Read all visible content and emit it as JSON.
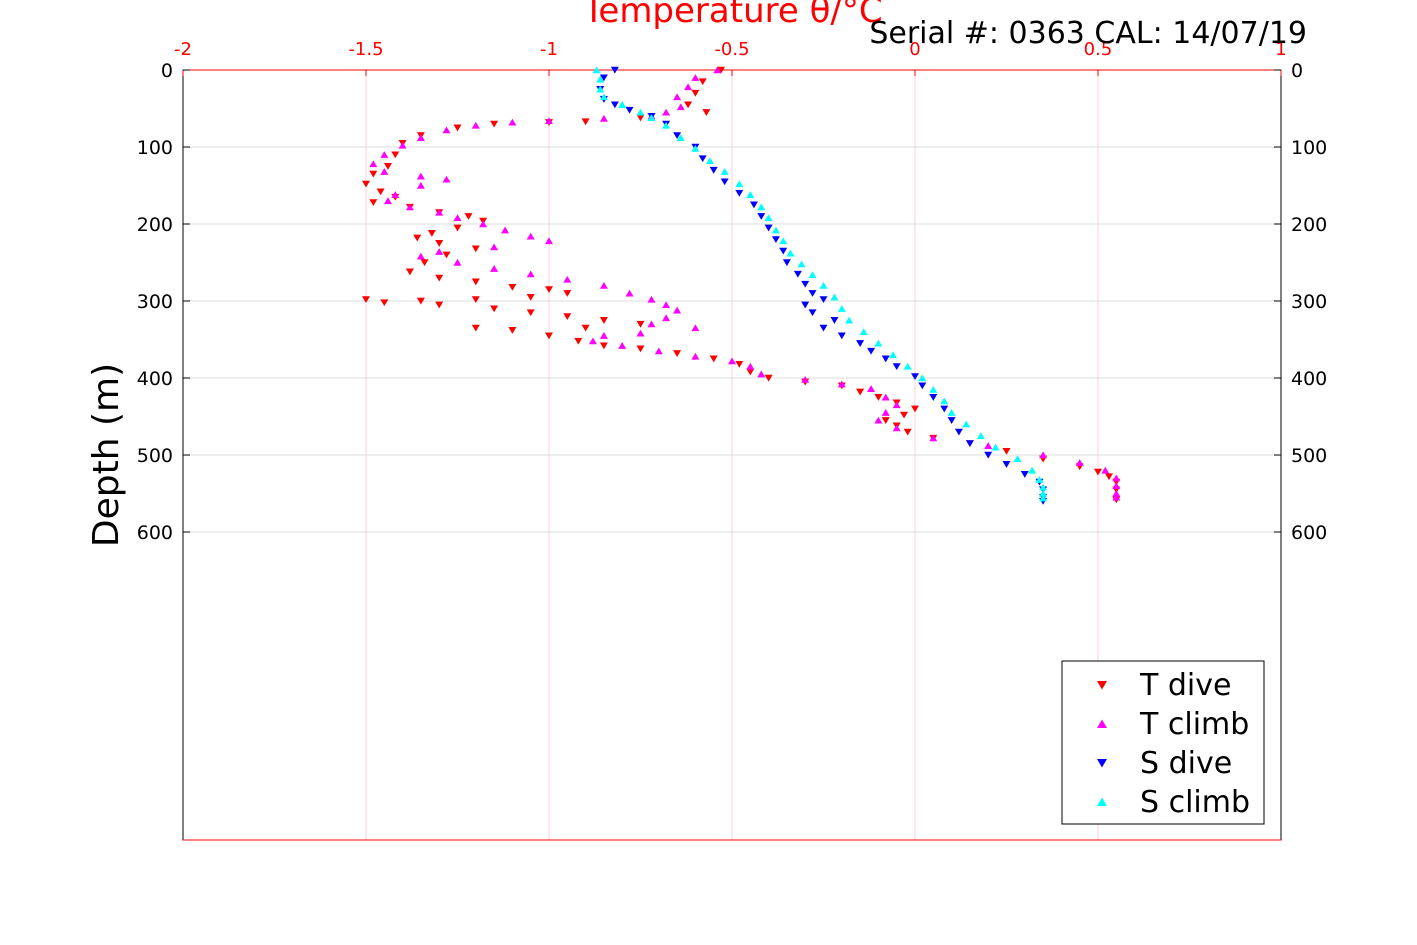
{
  "serial_text": "Serial #: 0363  CAL: 14/07/19",
  "chart_data": {
    "type": "scatter",
    "title": "Temperature θ/°C",
    "xlabel": "Temperature θ/°C",
    "ylabel": "Depth (m)",
    "xlim": [
      -2,
      1
    ],
    "ylim": [
      0,
      1000
    ],
    "y_reversed": true,
    "x_ticks": [
      "-2",
      "-1.5",
      "-1",
      "-0.5",
      "0",
      "0.5",
      "1"
    ],
    "x_tick_values": [
      -2,
      -1.5,
      -1,
      -0.5,
      0,
      0.5,
      1
    ],
    "y_ticks": [
      "0",
      "100",
      "200",
      "300",
      "400",
      "500",
      "600"
    ],
    "y_tick_values": [
      0,
      100,
      200,
      300,
      400,
      500,
      600
    ],
    "grid": true,
    "legend_position": "bottom-right",
    "series": [
      {
        "name": "T dive",
        "color": "#ff0000",
        "marker": "triangle-down",
        "points": [
          [
            -0.53,
            0
          ],
          [
            -0.58,
            15
          ],
          [
            -0.6,
            30
          ],
          [
            -0.62,
            45
          ],
          [
            -0.57,
            55
          ],
          [
            -0.75,
            62
          ],
          [
            -0.9,
            67
          ],
          [
            -1.0,
            68
          ],
          [
            -1.15,
            70
          ],
          [
            -1.25,
            75
          ],
          [
            -1.35,
            85
          ],
          [
            -1.4,
            95
          ],
          [
            -1.42,
            110
          ],
          [
            -1.44,
            125
          ],
          [
            -1.48,
            135
          ],
          [
            -1.5,
            148
          ],
          [
            -1.46,
            158
          ],
          [
            -1.42,
            165
          ],
          [
            -1.48,
            172
          ],
          [
            -1.38,
            178
          ],
          [
            -1.3,
            185
          ],
          [
            -1.22,
            190
          ],
          [
            -1.18,
            196
          ],
          [
            -1.25,
            205
          ],
          [
            -1.32,
            212
          ],
          [
            -1.36,
            218
          ],
          [
            -1.3,
            225
          ],
          [
            -1.2,
            232
          ],
          [
            -1.28,
            240
          ],
          [
            -1.34,
            250
          ],
          [
            -1.38,
            262
          ],
          [
            -1.3,
            270
          ],
          [
            -1.2,
            275
          ],
          [
            -1.1,
            282
          ],
          [
            -1.0,
            285
          ],
          [
            -0.95,
            290
          ],
          [
            -1.05,
            295
          ],
          [
            -1.2,
            298
          ],
          [
            -1.35,
            300
          ],
          [
            -1.5,
            298
          ],
          [
            -1.45,
            302
          ],
          [
            -1.3,
            305
          ],
          [
            -1.15,
            310
          ],
          [
            -1.05,
            315
          ],
          [
            -0.95,
            320
          ],
          [
            -0.85,
            325
          ],
          [
            -0.75,
            330
          ],
          [
            -0.9,
            335
          ],
          [
            -1.1,
            338
          ],
          [
            -1.2,
            335
          ],
          [
            -1.0,
            345
          ],
          [
            -0.92,
            352
          ],
          [
            -0.85,
            358
          ],
          [
            -0.75,
            362
          ],
          [
            -0.65,
            368
          ],
          [
            -0.55,
            375
          ],
          [
            -0.48,
            382
          ],
          [
            -0.45,
            392
          ],
          [
            -0.4,
            400
          ],
          [
            -0.3,
            405
          ],
          [
            -0.2,
            410
          ],
          [
            -0.15,
            418
          ],
          [
            -0.1,
            425
          ],
          [
            -0.05,
            432
          ],
          [
            0.0,
            440
          ],
          [
            -0.03,
            448
          ],
          [
            -0.08,
            455
          ],
          [
            -0.05,
            462
          ],
          [
            -0.02,
            470
          ],
          [
            0.05,
            478
          ],
          [
            0.15,
            485
          ],
          [
            0.25,
            495
          ],
          [
            0.35,
            505
          ],
          [
            0.45,
            515
          ],
          [
            0.5,
            522
          ],
          [
            0.53,
            528
          ],
          [
            0.55,
            535
          ],
          [
            0.55,
            545
          ],
          [
            0.55,
            558
          ]
        ]
      },
      {
        "name": "T climb",
        "color": "#ff00ff",
        "marker": "triangle-up",
        "points": [
          [
            -0.54,
            0
          ],
          [
            -0.6,
            10
          ],
          [
            -0.62,
            22
          ],
          [
            -0.65,
            35
          ],
          [
            -0.64,
            48
          ],
          [
            -0.68,
            55
          ],
          [
            -0.72,
            60
          ],
          [
            -0.85,
            63
          ],
          [
            -1.0,
            66
          ],
          [
            -1.1,
            68
          ],
          [
            -1.2,
            72
          ],
          [
            -1.28,
            78
          ],
          [
            -1.35,
            88
          ],
          [
            -1.4,
            98
          ],
          [
            -1.45,
            110
          ],
          [
            -1.48,
            122
          ],
          [
            -1.45,
            132
          ],
          [
            -1.35,
            138
          ],
          [
            -1.28,
            142
          ],
          [
            -1.35,
            150
          ],
          [
            -1.42,
            162
          ],
          [
            -1.44,
            170
          ],
          [
            -1.38,
            178
          ],
          [
            -1.3,
            185
          ],
          [
            -1.25,
            192
          ],
          [
            -1.18,
            200
          ],
          [
            -1.12,
            208
          ],
          [
            -1.05,
            216
          ],
          [
            -1.0,
            222
          ],
          [
            -1.15,
            230
          ],
          [
            -1.3,
            236
          ],
          [
            -1.35,
            242
          ],
          [
            -1.25,
            250
          ],
          [
            -1.15,
            258
          ],
          [
            -1.05,
            265
          ],
          [
            -0.95,
            272
          ],
          [
            -0.85,
            280
          ],
          [
            -0.78,
            290
          ],
          [
            -0.72,
            298
          ],
          [
            -0.68,
            305
          ],
          [
            -0.65,
            312
          ],
          [
            -0.68,
            322
          ],
          [
            -0.72,
            330
          ],
          [
            -0.6,
            335
          ],
          [
            -0.75,
            342
          ],
          [
            -0.85,
            345
          ],
          [
            -0.88,
            352
          ],
          [
            -0.8,
            358
          ],
          [
            -0.7,
            365
          ],
          [
            -0.6,
            372
          ],
          [
            -0.5,
            378
          ],
          [
            -0.45,
            385
          ],
          [
            -0.42,
            395
          ],
          [
            -0.3,
            402
          ],
          [
            -0.2,
            408
          ],
          [
            -0.12,
            414
          ],
          [
            -0.08,
            425
          ],
          [
            -0.05,
            435
          ],
          [
            -0.08,
            445
          ],
          [
            -0.1,
            455
          ],
          [
            -0.05,
            465
          ],
          [
            0.05,
            478
          ],
          [
            0.2,
            488
          ],
          [
            0.35,
            500
          ],
          [
            0.45,
            510
          ],
          [
            0.52,
            520
          ],
          [
            0.55,
            530
          ],
          [
            0.55,
            540
          ],
          [
            0.55,
            550
          ],
          [
            0.55,
            555
          ]
        ]
      },
      {
        "name": "S dive",
        "color": "#0000ff",
        "marker": "triangle-down",
        "points": [
          [
            -0.82,
            0
          ],
          [
            -0.85,
            10
          ],
          [
            -0.86,
            25
          ],
          [
            -0.85,
            38
          ],
          [
            -0.82,
            45
          ],
          [
            -0.78,
            52
          ],
          [
            -0.72,
            60
          ],
          [
            -0.68,
            70
          ],
          [
            -0.65,
            85
          ],
          [
            -0.6,
            100
          ],
          [
            -0.58,
            115
          ],
          [
            -0.55,
            130
          ],
          [
            -0.52,
            145
          ],
          [
            -0.48,
            160
          ],
          [
            -0.44,
            175
          ],
          [
            -0.42,
            190
          ],
          [
            -0.4,
            205
          ],
          [
            -0.38,
            220
          ],
          [
            -0.36,
            235
          ],
          [
            -0.35,
            250
          ],
          [
            -0.32,
            265
          ],
          [
            -0.3,
            278
          ],
          [
            -0.28,
            290
          ],
          [
            -0.25,
            298
          ],
          [
            -0.3,
            305
          ],
          [
            -0.28,
            315
          ],
          [
            -0.22,
            325
          ],
          [
            -0.25,
            335
          ],
          [
            -0.2,
            345
          ],
          [
            -0.15,
            355
          ],
          [
            -0.12,
            365
          ],
          [
            -0.08,
            375
          ],
          [
            -0.05,
            385
          ],
          [
            0.0,
            398
          ],
          [
            0.02,
            410
          ],
          [
            0.05,
            425
          ],
          [
            0.08,
            440
          ],
          [
            0.1,
            455
          ],
          [
            0.12,
            470
          ],
          [
            0.15,
            485
          ],
          [
            0.2,
            500
          ],
          [
            0.25,
            512
          ],
          [
            0.3,
            525
          ],
          [
            0.34,
            535
          ],
          [
            0.35,
            545
          ],
          [
            0.35,
            555
          ],
          [
            0.35,
            560
          ]
        ]
      },
      {
        "name": "S climb",
        "color": "#00ffff",
        "marker": "triangle-up",
        "points": [
          [
            -0.87,
            0
          ],
          [
            -0.86,
            12
          ],
          [
            -0.86,
            25
          ],
          [
            -0.85,
            35
          ],
          [
            -0.8,
            45
          ],
          [
            -0.75,
            55
          ],
          [
            -0.72,
            62
          ],
          [
            -0.68,
            72
          ],
          [
            -0.64,
            88
          ],
          [
            -0.6,
            102
          ],
          [
            -0.56,
            118
          ],
          [
            -0.52,
            132
          ],
          [
            -0.48,
            148
          ],
          [
            -0.45,
            162
          ],
          [
            -0.42,
            178
          ],
          [
            -0.4,
            192
          ],
          [
            -0.38,
            208
          ],
          [
            -0.36,
            222
          ],
          [
            -0.34,
            238
          ],
          [
            -0.31,
            252
          ],
          [
            -0.28,
            266
          ],
          [
            -0.25,
            280
          ],
          [
            -0.22,
            295
          ],
          [
            -0.2,
            310
          ],
          [
            -0.18,
            325
          ],
          [
            -0.14,
            340
          ],
          [
            -0.1,
            355
          ],
          [
            -0.06,
            370
          ],
          [
            -0.02,
            385
          ],
          [
            0.02,
            400
          ],
          [
            0.05,
            415
          ],
          [
            0.08,
            430
          ],
          [
            0.1,
            445
          ],
          [
            0.14,
            460
          ],
          [
            0.18,
            475
          ],
          [
            0.22,
            490
          ],
          [
            0.28,
            505
          ],
          [
            0.32,
            520
          ],
          [
            0.34,
            532
          ],
          [
            0.35,
            542
          ],
          [
            0.35,
            550
          ],
          [
            0.35,
            556
          ]
        ]
      }
    ]
  }
}
